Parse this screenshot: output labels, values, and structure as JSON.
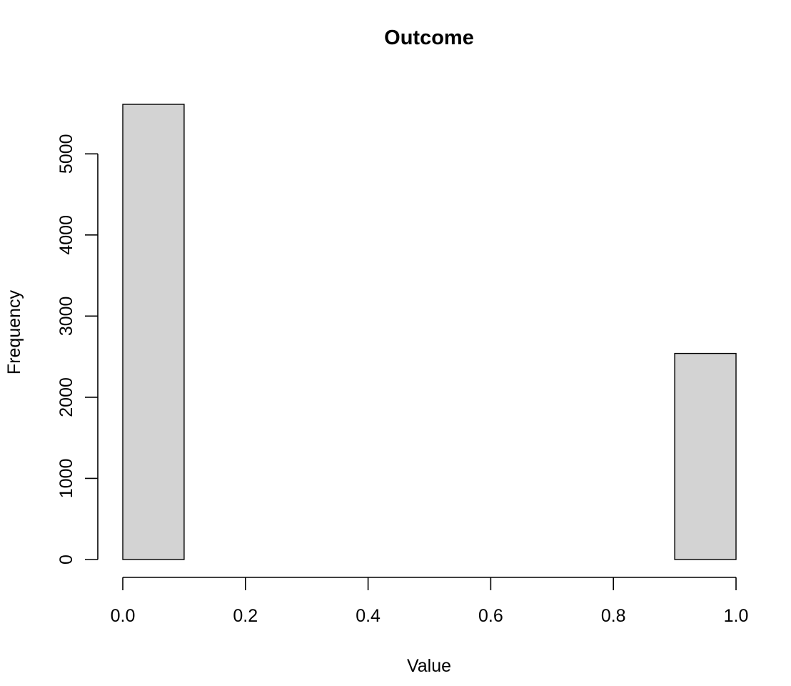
{
  "chart_data": {
    "type": "bar",
    "title": "Outcome",
    "xlabel": "Value",
    "ylabel": "Frequency",
    "bin_edges": [
      0.0,
      0.1,
      0.2,
      0.3,
      0.4,
      0.5,
      0.6,
      0.7,
      0.8,
      0.9,
      1.0
    ],
    "values": [
      5610,
      0,
      0,
      0,
      0,
      0,
      0,
      0,
      0,
      2540
    ],
    "xlim": [
      0,
      1
    ],
    "ylim": [
      0,
      5610
    ],
    "x_ticks": [
      0.0,
      0.2,
      0.4,
      0.6,
      0.8,
      1.0
    ],
    "x_tick_labels": [
      "0.0",
      "0.2",
      "0.4",
      "0.6",
      "0.8",
      "1.0"
    ],
    "y_ticks": [
      0,
      1000,
      2000,
      3000,
      4000,
      5000
    ],
    "y_tick_labels": [
      "0",
      "1000",
      "2000",
      "3000",
      "4000",
      "5000"
    ],
    "grid": false,
    "bar_color": "#d3d3d3",
    "border_color": "#000000"
  }
}
